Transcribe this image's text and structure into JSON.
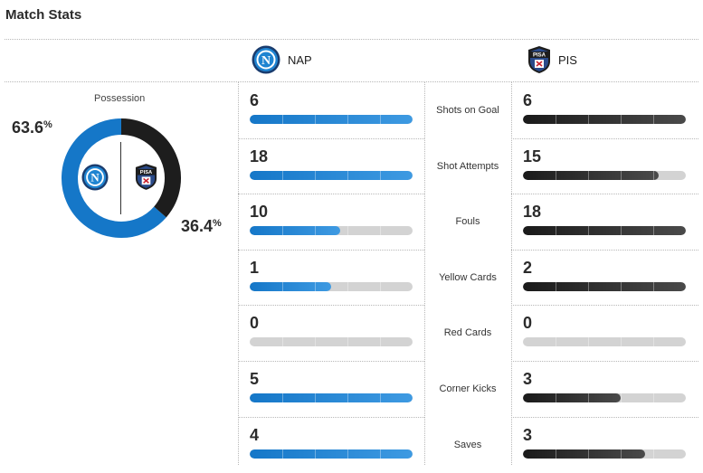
{
  "header": {
    "title": "Match Stats"
  },
  "teams": {
    "home": {
      "abbr": "NAP",
      "color": "#1577c8"
    },
    "away": {
      "abbr": "PIS",
      "color": "#222222",
      "badge_text": "PISA"
    }
  },
  "possession": {
    "label": "Possession",
    "home_value": "63.6",
    "away_value": "36.4",
    "unit": "%"
  },
  "stats": [
    {
      "label": "Shots on Goal",
      "home": 6,
      "away": 6
    },
    {
      "label": "Shot Attempts",
      "home": 18,
      "away": 15
    },
    {
      "label": "Fouls",
      "home": 10,
      "away": 18
    },
    {
      "label": "Yellow Cards",
      "home": 1,
      "away": 2
    },
    {
      "label": "Red Cards",
      "home": 0,
      "away": 0
    },
    {
      "label": "Corner Kicks",
      "home": 5,
      "away": 3
    },
    {
      "label": "Saves",
      "home": 4,
      "away": 3
    }
  ],
  "icons": {
    "home_logo": "napoli-logo-icon",
    "away_logo": "pisa-logo-icon"
  }
}
